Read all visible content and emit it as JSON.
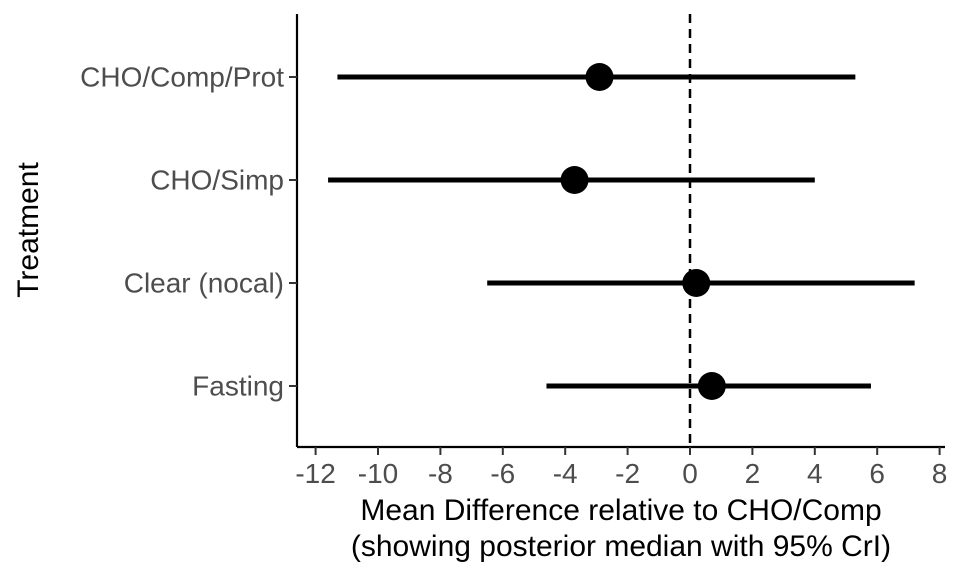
{
  "chart_data": {
    "type": "forest",
    "xlabel": "Mean Difference relative to CHO/Comp",
    "xlabel_line2": "(showing posterior median with 95% CrI)",
    "ylabel": "Treatment",
    "xlim": [
      -12.5,
      8.2
    ],
    "xticks": [
      -12,
      -10,
      -8,
      -6,
      -4,
      -2,
      0,
      2,
      4,
      6,
      8
    ],
    "xtick_labels": [
      "-12",
      "-10",
      "-8",
      "-6",
      "-4",
      "-2",
      "0",
      "2",
      "4",
      "6",
      "8"
    ],
    "reference_line": 0,
    "reference_line_style": "dashed",
    "grid": false,
    "categories": [
      "CHO/Comp/Prot",
      "CHO/Simp",
      "Clear (nocal)",
      "Fasting"
    ],
    "estimates": [
      {
        "label": "CHO/Comp/Prot",
        "median": -2.9,
        "lower": -11.3,
        "upper": 5.3
      },
      {
        "label": "CHO/Simp",
        "median": -3.7,
        "lower": -11.6,
        "upper": 4.0
      },
      {
        "label": "Clear (nocal)",
        "median": 0.2,
        "lower": -6.5,
        "upper": 7.2
      },
      {
        "label": "Fasting",
        "median": 0.7,
        "lower": -4.6,
        "upper": 5.8
      }
    ],
    "point_color": "#000000",
    "line_color": "#000000"
  }
}
